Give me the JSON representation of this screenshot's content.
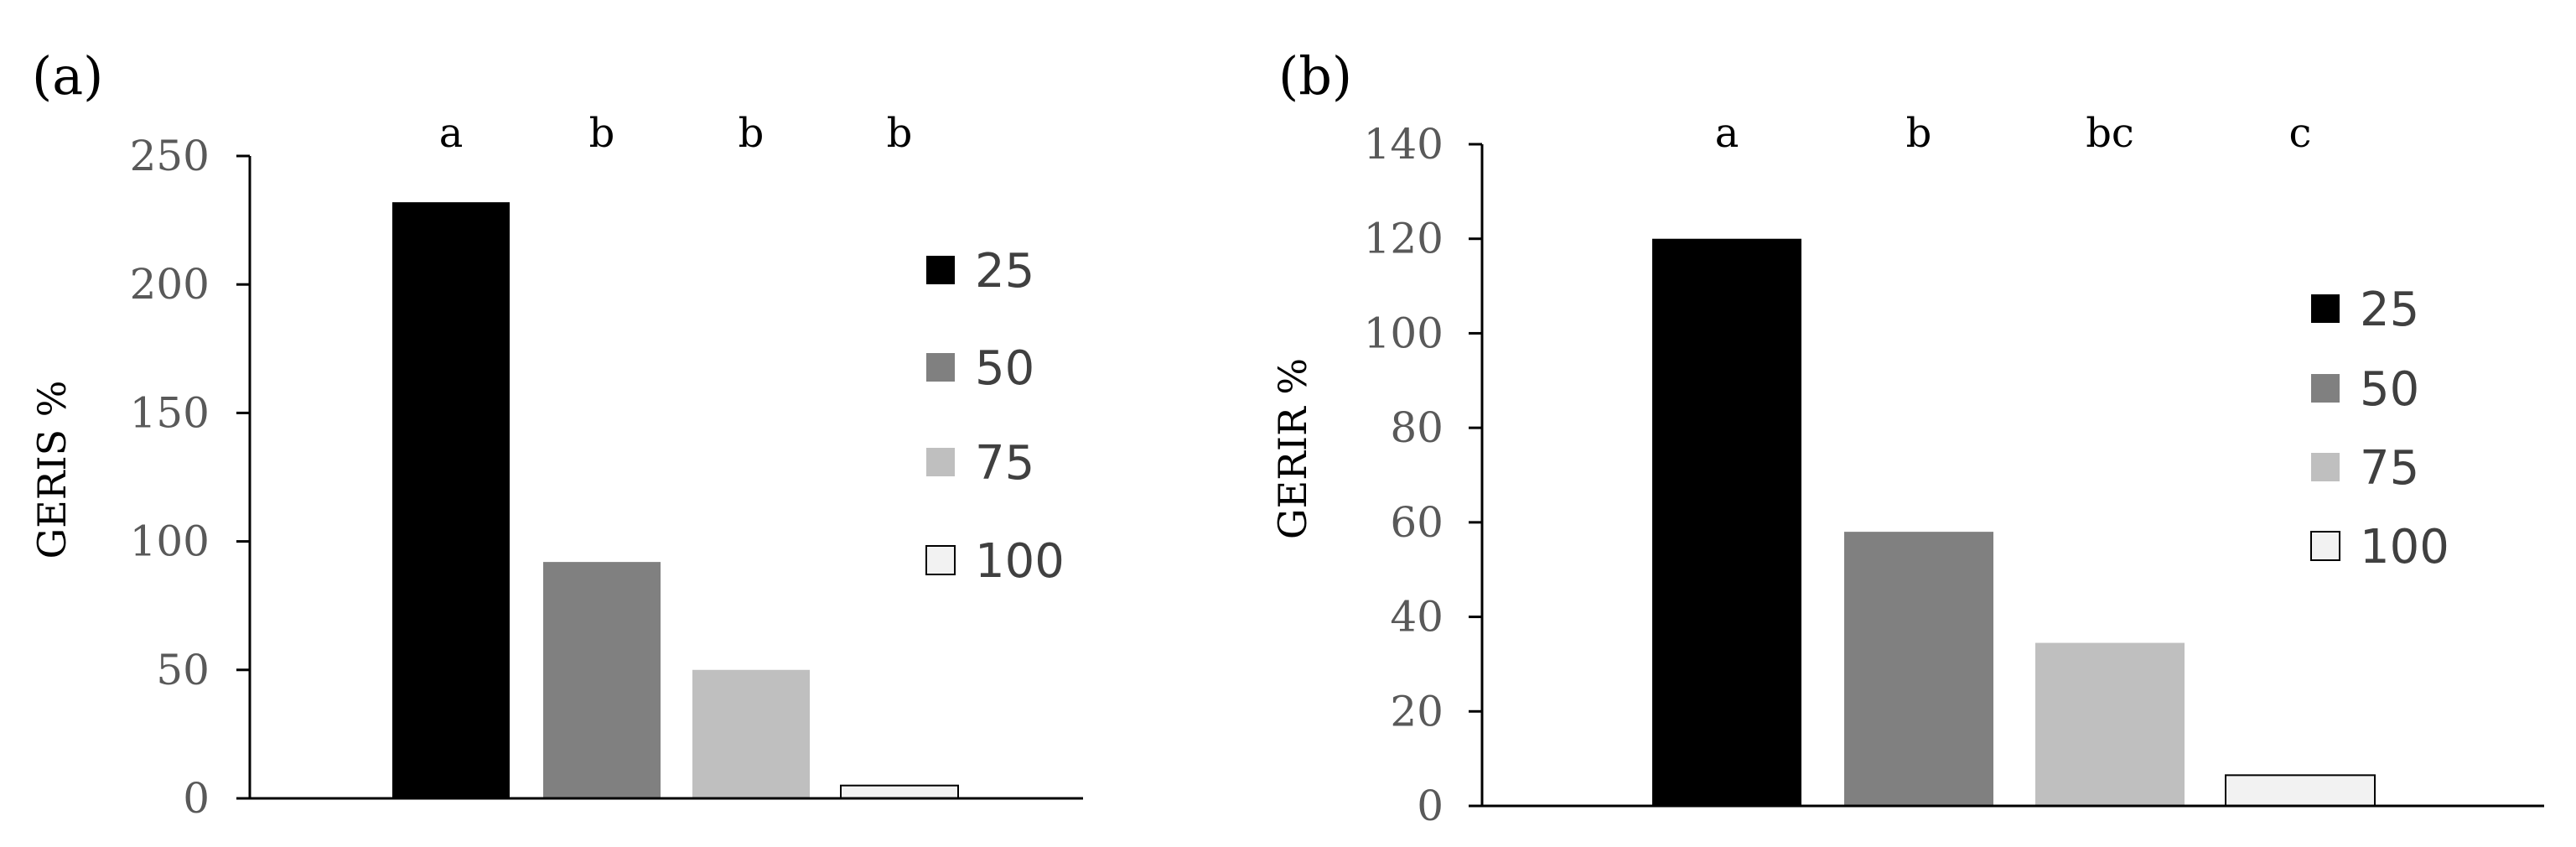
{
  "chart_data": [
    {
      "type": "bar",
      "panel_label": "(a)",
      "ylabel": "GERIS %",
      "ylim": [
        0,
        250
      ],
      "yticks": [
        0,
        50,
        100,
        150,
        200,
        250
      ],
      "grid": false,
      "legend_placement": "right",
      "categories": [
        "25",
        "50",
        "75",
        "100"
      ],
      "values": [
        232,
        92,
        50,
        5
      ],
      "colors": [
        "#000000",
        "#808080",
        "#bfbfbf",
        "#f2f2f2"
      ],
      "significance_letters": [
        "a",
        "b",
        "b",
        "b"
      ],
      "legend": [
        "25",
        "50",
        "75",
        "100"
      ]
    },
    {
      "type": "bar",
      "panel_label": "(b)",
      "ylabel": "GERIR %",
      "ylim": [
        0,
        140
      ],
      "yticks": [
        0,
        20,
        40,
        60,
        80,
        100,
        120,
        140
      ],
      "grid": false,
      "legend_placement": "right",
      "categories": [
        "25",
        "50",
        "75",
        "100"
      ],
      "values": [
        120,
        58,
        34.5,
        6.5
      ],
      "colors": [
        "#000000",
        "#808080",
        "#bfbfbf",
        "#f2f2f2"
      ],
      "significance_letters": [
        "a",
        "b",
        "bc",
        "c"
      ],
      "legend": [
        "25",
        "50",
        "75",
        "100"
      ]
    }
  ]
}
